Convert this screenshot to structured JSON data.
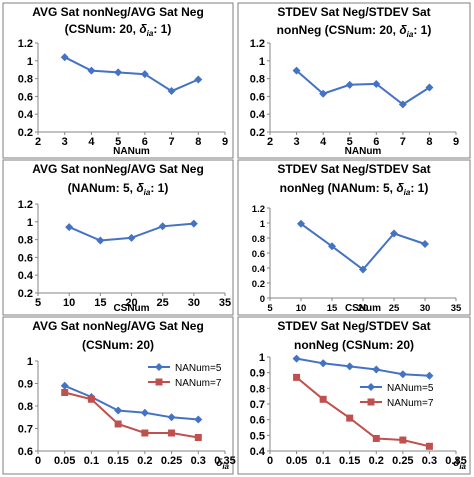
{
  "chart_data": [
    {
      "type": "line",
      "title_lines": [
        "AVG Sat nonNeg/AVG Sat Neg",
        "(CSNum: 20, δ_ia: 1)"
      ],
      "xlabel": "NANum",
      "ylabel": "",
      "x": [
        3,
        4,
        5,
        6,
        7,
        8
      ],
      "series": [
        {
          "name": "",
          "color": "#4472C4",
          "marker": "diamond",
          "values": [
            1.04,
            0.89,
            0.87,
            0.85,
            0.66,
            0.79
          ]
        }
      ],
      "xlim": [
        2,
        9
      ],
      "ylim": [
        0.2,
        1.2
      ],
      "xticks": [
        "2",
        "3",
        "4",
        "5",
        "6",
        "7",
        "8",
        "9"
      ],
      "yticks": [
        "0.2",
        "0.4",
        "0.6",
        "0.8",
        "1",
        "1.2"
      ],
      "grid": false,
      "legend": "none"
    },
    {
      "type": "line",
      "title_lines": [
        "STDEV Sat Neg/STDEV Sat",
        "nonNeg (CSNum: 20, δ_ia: 1)"
      ],
      "xlabel": "NANum",
      "ylabel": "",
      "x": [
        3,
        4,
        5,
        6,
        7,
        8
      ],
      "series": [
        {
          "name": "",
          "color": "#4472C4",
          "marker": "diamond",
          "values": [
            0.89,
            0.63,
            0.73,
            0.74,
            0.51,
            0.7
          ]
        }
      ],
      "xlim": [
        2,
        9
      ],
      "ylim": [
        0.2,
        1.2
      ],
      "xticks": [
        "2",
        "3",
        "4",
        "5",
        "6",
        "7",
        "8",
        "9"
      ],
      "yticks": [
        "0.2",
        "0.4",
        "0.6",
        "0.8",
        "1",
        "1.2"
      ],
      "grid": false,
      "legend": "none"
    },
    {
      "type": "line",
      "title_lines": [
        "AVG Sat nonNeg/AVG Sat Neg",
        "(NANum: 5, δ_ia: 1)"
      ],
      "xlabel": "CSNum",
      "ylabel": "",
      "x": [
        10,
        15,
        20,
        25,
        30
      ],
      "series": [
        {
          "name": "",
          "color": "#4472C4",
          "marker": "diamond",
          "values": [
            0.94,
            0.79,
            0.82,
            0.95,
            0.98
          ]
        }
      ],
      "xlim": [
        5,
        35
      ],
      "ylim": [
        0.2,
        1.2
      ],
      "xticks": [
        "5",
        "10",
        "15",
        "20",
        "25",
        "30",
        "35"
      ],
      "yticks": [
        "0.2",
        "0.4",
        "0.6",
        "0.8",
        "1",
        "1.2"
      ],
      "grid": false,
      "legend": "none"
    },
    {
      "type": "line",
      "title_lines": [
        "STDEV Sat Neg/STDEV Sat",
        "nonNeg (NANum: 5, δ_ia: 1)"
      ],
      "xlabel": "CSNum",
      "ylabel": "",
      "x": [
        10,
        15,
        20,
        25,
        30
      ],
      "series": [
        {
          "name": "",
          "color": "#4472C4",
          "marker": "diamond",
          "values": [
            0.99,
            0.69,
            0.38,
            0.86,
            0.72
          ]
        }
      ],
      "xlim": [
        5,
        35
      ],
      "ylim": [
        0,
        1.2
      ],
      "xticks": [
        "5",
        "10",
        "15",
        "20",
        "25",
        "30",
        "35"
      ],
      "yticks": [
        "0",
        "0.2",
        "0.4",
        "0.6",
        "0.8",
        "1",
        "1.2"
      ],
      "grid": false,
      "legend": "none"
    },
    {
      "type": "line",
      "title_lines": [
        "AVG Sat nonNeg/AVG Sat Neg",
        "(CSNum: 20)"
      ],
      "xlabel": "δ_ia",
      "ylabel": "",
      "x": [
        0.05,
        0.1,
        0.15,
        0.2,
        0.25,
        0.3
      ],
      "series": [
        {
          "name": "NANum=5",
          "color": "#4472C4",
          "marker": "diamond",
          "values": [
            0.89,
            0.84,
            0.78,
            0.77,
            0.75,
            0.74
          ]
        },
        {
          "name": "NANum=7",
          "color": "#C0504D",
          "marker": "square",
          "values": [
            0.86,
            0.83,
            0.72,
            0.68,
            0.68,
            0.66
          ]
        }
      ],
      "xlim": [
        0,
        0.35
      ],
      "ylim": [
        0.6,
        1.0
      ],
      "xticks": [
        "0",
        "0.05",
        "0.1",
        "0.15",
        "0.2",
        "0.25",
        "0.3",
        "0.35"
      ],
      "yticks": [
        "0.6",
        "0.7",
        "0.8",
        "0.9",
        "1"
      ],
      "grid": false,
      "legend": "upper-right inside plot"
    },
    {
      "type": "line",
      "title_lines": [
        "STDEV Sat Neg/STDEV Sat",
        "nonNeg (CSNum: 20)"
      ],
      "xlabel": "δ_ia",
      "ylabel": "",
      "x": [
        0.05,
        0.1,
        0.15,
        0.2,
        0.25,
        0.3
      ],
      "series": [
        {
          "name": "NANum=5",
          "color": "#4472C4",
          "marker": "diamond",
          "values": [
            0.99,
            0.96,
            0.94,
            0.92,
            0.89,
            0.88
          ]
        },
        {
          "name": "NANum=7",
          "color": "#C0504D",
          "marker": "square",
          "values": [
            0.87,
            0.73,
            0.61,
            0.48,
            0.47,
            0.43
          ]
        }
      ],
      "xlim": [
        0,
        0.35
      ],
      "ylim": [
        0.4,
        1.0
      ],
      "xticks": [
        "0",
        "0.05",
        "0.1",
        "0.15",
        "0.2",
        "0.25",
        "0.3",
        "0.35"
      ],
      "yticks": [
        "0.4",
        "0.5",
        "0.6",
        "0.7",
        "0.8",
        "0.9",
        "1"
      ],
      "grid": false,
      "legend": "middle-right inside plot"
    }
  ]
}
